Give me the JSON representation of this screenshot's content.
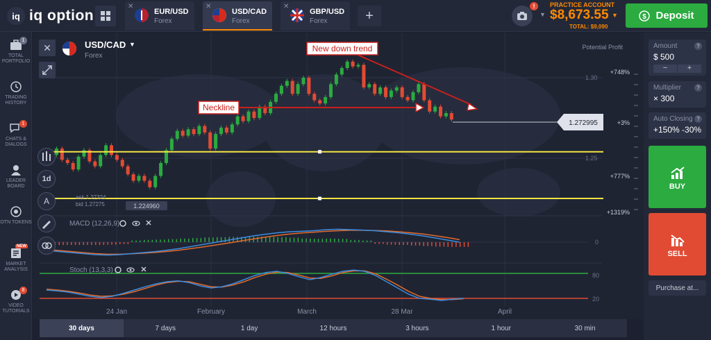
{
  "app": {
    "logo_text": "iq option"
  },
  "tabs": [
    {
      "pair": "EUR/USD",
      "type": "Forex",
      "active": false
    },
    {
      "pair": "USD/CAD",
      "type": "Forex",
      "active": true
    },
    {
      "pair": "GBP/USD",
      "type": "Forex",
      "active": false
    }
  ],
  "account": {
    "label": "PRACTICE ACCOUNT",
    "balance": "$8,673.55",
    "total": "TOTAL: $9,090",
    "camera_badge": "!",
    "deposit_label": "Deposit",
    "accent": "#ff8a00",
    "deposit_color": "#2bab40"
  },
  "left_nav": [
    {
      "label": "TOTAL PORTFOLIO",
      "icon": "briefcase-icon",
      "badge": "1"
    },
    {
      "label": "TRADING HISTORY",
      "icon": "history-icon",
      "badge": ""
    },
    {
      "label": "CHATS & DIALOGS",
      "icon": "chat-icon",
      "badge": "1"
    },
    {
      "label": "LEADER BOARD",
      "icon": "trophy-icon",
      "badge": ""
    },
    {
      "label": "OTN TOKENS",
      "icon": "token-icon",
      "badge": ""
    },
    {
      "label": "MARKET ANALYSIS",
      "icon": "analysis-icon",
      "badge": "NEW"
    },
    {
      "label": "VIDEO TUTORIALS",
      "icon": "video-icon",
      "badge": "8"
    }
  ],
  "asset": {
    "pair": "USD/CAD",
    "type": "Forex"
  },
  "chart_tools": {
    "period": "1d",
    "ask": "ask 1.27324",
    "bid": "bid 1.27275",
    "support_label": "1.224960",
    "potential_profit": "Potential Profit",
    "macd_label": "MACD (12,26,9)",
    "stoch_label": "Stoch (13,3,3)"
  },
  "annotations": {
    "neckline": "Neckline",
    "new_down_trend": "New down trend"
  },
  "chart_data": {
    "type": "candlestick",
    "title": "",
    "current_price": "1.272995",
    "y_ticks": [
      "1.30",
      "1.25"
    ],
    "right_profit_labels": [
      "+748%",
      "+3%",
      "+777%",
      "+1319%"
    ],
    "x_ticks": [
      "24 Jan",
      "February",
      "March",
      "28 Mar",
      "April"
    ],
    "macd_zero_label": "0",
    "stoch_levels": [
      "80",
      "20"
    ],
    "horizontal_levels": [
      1.254,
      1.225
    ],
    "neckline_level": 1.285,
    "candles": [
      [
        1.252,
        1.256
      ],
      [
        1.256,
        1.249
      ],
      [
        1.249,
        1.247
      ],
      [
        1.247,
        1.243
      ],
      [
        1.243,
        1.251
      ],
      [
        1.251,
        1.255
      ],
      [
        1.255,
        1.248
      ],
      [
        1.248,
        1.245
      ],
      [
        1.245,
        1.252
      ],
      [
        1.252,
        1.258
      ],
      [
        1.258,
        1.252
      ],
      [
        1.252,
        1.249
      ],
      [
        1.249,
        1.245
      ],
      [
        1.245,
        1.24
      ],
      [
        1.24,
        1.236
      ],
      [
        1.236,
        1.239
      ],
      [
        1.239,
        1.236
      ],
      [
        1.236,
        1.232
      ],
      [
        1.232,
        1.239
      ],
      [
        1.239,
        1.247
      ],
      [
        1.247,
        1.255
      ],
      [
        1.255,
        1.262
      ],
      [
        1.262,
        1.267
      ],
      [
        1.267,
        1.264
      ],
      [
        1.264,
        1.268
      ],
      [
        1.268,
        1.265
      ],
      [
        1.265,
        1.27
      ],
      [
        1.27,
        1.266
      ],
      [
        1.266,
        1.256
      ],
      [
        1.256,
        1.265
      ],
      [
        1.265,
        1.269
      ],
      [
        1.269,
        1.266
      ],
      [
        1.266,
        1.271
      ],
      [
        1.271,
        1.276
      ],
      [
        1.276,
        1.273
      ],
      [
        1.273,
        1.279
      ],
      [
        1.279,
        1.275
      ],
      [
        1.275,
        1.282
      ],
      [
        1.282,
        1.278
      ],
      [
        1.278,
        1.285
      ],
      [
        1.285,
        1.29
      ],
      [
        1.29,
        1.295
      ],
      [
        1.295,
        1.298
      ],
      [
        1.298,
        1.29
      ],
      [
        1.29,
        1.296
      ],
      [
        1.296,
        1.3
      ],
      [
        1.3,
        1.29
      ],
      [
        1.29,
        1.286
      ],
      [
        1.286,
        1.284
      ],
      [
        1.284,
        1.288
      ],
      [
        1.288,
        1.296
      ],
      [
        1.296,
        1.302
      ],
      [
        1.302,
        1.306
      ],
      [
        1.306,
        1.31
      ],
      [
        1.31,
        1.307
      ],
      [
        1.307,
        1.308
      ],
      [
        1.308,
        1.294
      ],
      [
        1.294,
        1.296
      ],
      [
        1.296,
        1.29
      ],
      [
        1.29,
        1.294
      ],
      [
        1.294,
        1.288
      ],
      [
        1.288,
        1.292
      ],
      [
        1.292,
        1.294
      ],
      [
        1.294,
        1.288
      ],
      [
        1.288,
        1.286
      ],
      [
        1.286,
        1.291
      ],
      [
        1.291,
        1.296
      ],
      [
        1.296,
        1.286
      ],
      [
        1.286,
        1.279
      ],
      [
        1.279,
        1.282
      ],
      [
        1.282,
        1.276
      ],
      [
        1.276,
        1.278
      ],
      [
        1.278,
        1.274
      ]
    ],
    "macd": [
      -0.4,
      -0.45,
      -0.5,
      -0.55,
      -0.6,
      -0.62,
      -0.6,
      -0.55,
      -0.5,
      -0.45,
      -0.38,
      -0.3,
      -0.2,
      -0.1,
      0.0,
      0.1,
      0.2,
      0.3,
      0.38,
      0.45,
      0.5,
      0.52,
      0.55,
      0.6,
      0.62,
      0.6,
      0.58,
      0.55,
      0.5,
      0.45,
      0.38,
      0.3,
      0.2,
      0.1,
      0.0
    ],
    "macd_signal": [
      -0.35,
      -0.4,
      -0.45,
      -0.5,
      -0.55,
      -0.58,
      -0.58,
      -0.56,
      -0.53,
      -0.49,
      -0.44,
      -0.38,
      -0.3,
      -0.22,
      -0.13,
      -0.04,
      0.06,
      0.15,
      0.24,
      0.32,
      0.39,
      0.44,
      0.48,
      0.52,
      0.55,
      0.57,
      0.57,
      0.56,
      0.54,
      0.5,
      0.45,
      0.39,
      0.31,
      0.22,
      0.12
    ],
    "stoch_k": [
      40,
      38,
      35,
      30,
      25,
      22,
      25,
      32,
      40,
      48,
      55,
      60,
      62,
      58,
      50,
      45,
      48,
      55,
      65,
      75,
      82,
      85,
      80,
      72,
      65,
      70,
      78,
      85,
      88,
      85,
      75,
      60,
      45,
      30,
      20,
      18,
      15,
      18,
      20
    ],
    "stoch_d": [
      42,
      40,
      37,
      33,
      28,
      25,
      26,
      30,
      36,
      44,
      52,
      58,
      61,
      60,
      54,
      48,
      47,
      52,
      60,
      70,
      78,
      83,
      82,
      76,
      69,
      68,
      74,
      82,
      86,
      86,
      79,
      66,
      52,
      37,
      25,
      20,
      17,
      17,
      19
    ],
    "colors": {
      "up": "#2bab40",
      "down": "#e24b33",
      "level": "#f5e642",
      "stoch_top": "#2bab40",
      "stoch_bottom": "#e24b33",
      "macd_line": "#3b8de0",
      "signal_line": "#e46b2a"
    }
  },
  "right_panel": {
    "amount_label": "Amount",
    "amount_value": "$ 500",
    "multiplier_label": "Multiplier",
    "multiplier_value": "× 300",
    "auto_close_label": "Auto Closing",
    "auto_close_value": "+150% -30%",
    "buy_label": "BUY",
    "sell_label": "SELL",
    "purchase_label": "Purchase at..."
  },
  "timeframes": [
    {
      "label": "30 days",
      "active": true
    },
    {
      "label": "7 days",
      "active": false
    },
    {
      "label": "1 day",
      "active": false
    },
    {
      "label": "12 hours",
      "active": false
    },
    {
      "label": "3 hours",
      "active": false
    },
    {
      "label": "1 hour",
      "active": false
    },
    {
      "label": "30 min",
      "active": false
    }
  ]
}
